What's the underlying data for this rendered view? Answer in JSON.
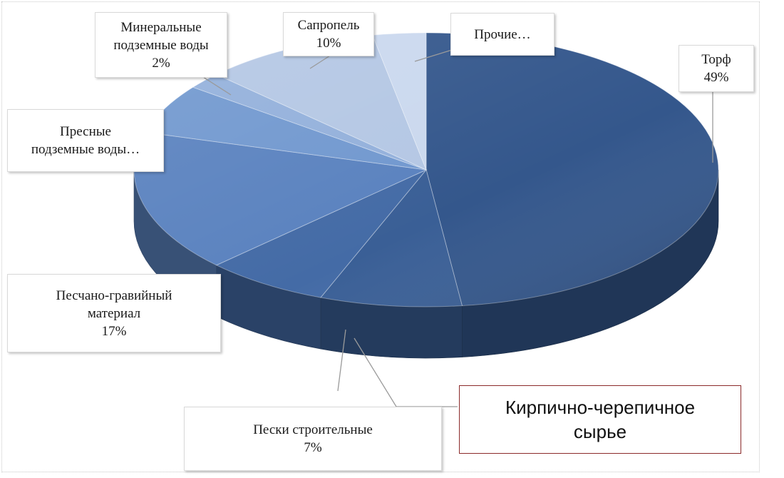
{
  "chart_data": {
    "type": "pie",
    "title": "",
    "slices": [
      {
        "key": "torf",
        "label": "Торф",
        "value_text": "49%",
        "value": 49,
        "color": "#34578c"
      },
      {
        "key": "kirpich",
        "label": "Кирпично-черепичное сырье",
        "value": 8,
        "color": "#3a5f96"
      },
      {
        "key": "peski",
        "label": "Пески строительные",
        "value_text": "7%",
        "value": 7,
        "color": "#446ba6"
      },
      {
        "key": "pgm",
        "label": "Песчано-гравийный материал",
        "value_text": "17%",
        "value": 17,
        "color": "#5a82bf"
      },
      {
        "key": "presnye",
        "label": "Пресные подземные воды…",
        "value": 6,
        "color": "#7198cf"
      },
      {
        "key": "mineral",
        "label": "Минеральные подземные воды",
        "value_text": "2%",
        "value": 2,
        "color": "#93b0db"
      },
      {
        "key": "sapropel",
        "label": "Сапропель",
        "value_text": "10%",
        "value": 10,
        "color": "#b4c7e4"
      },
      {
        "key": "prochie",
        "label": "Прочие…",
        "value": 3,
        "color": "#cad8ee"
      }
    ]
  },
  "labels": {
    "torf": {
      "line1": "Торф",
      "line2": "49%"
    },
    "sapropel": {
      "line1": "Сапропель",
      "line2": "10%"
    },
    "prochie": {
      "line1": "Прочие…"
    },
    "mineral": {
      "line1": "Минеральные",
      "line2": "подземные воды",
      "line3": "2%"
    },
    "presnye": {
      "line1": "Пресные",
      "line2": "подземные воды…"
    },
    "pgm": {
      "line1": "Песчано-гравийный",
      "line2": "материал",
      "line3": "17%"
    },
    "peski": {
      "line1": "Пески строительные",
      "line2": "7%"
    },
    "kirpich": {
      "line1": "Кирпично-черепичное",
      "line2": "сырье"
    }
  }
}
